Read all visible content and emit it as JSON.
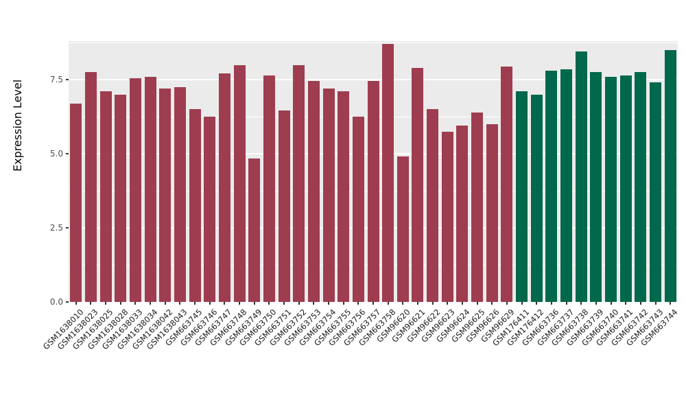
{
  "chart_data": {
    "type": "bar",
    "title": "",
    "xlabel": "",
    "ylabel": "Expression Level",
    "ylim": [
      0,
      8.8
    ],
    "grid": true,
    "legend": "none",
    "panel_bg": "#EBEBEB",
    "ytick_values": [
      0,
      2.5,
      5,
      7.5
    ],
    "ytick_labels": [
      "0.0",
      "2.5",
      "5.0",
      "7.5"
    ],
    "minor_tick_values": [
      1.25,
      3.75,
      6.25,
      8.75
    ],
    "group_colors": {
      "groupA": "#9e3d50",
      "groupB": "#01684b"
    },
    "samples": [
      {
        "label": "GSM1638010",
        "value": 6.7,
        "group": "groupA"
      },
      {
        "label": "GSM1638023",
        "value": 7.75,
        "group": "groupA"
      },
      {
        "label": "GSM1638025",
        "value": 7.1,
        "group": "groupA"
      },
      {
        "label": "GSM1638028",
        "value": 7.0,
        "group": "groupA"
      },
      {
        "label": "GSM1638033",
        "value": 7.55,
        "group": "groupA"
      },
      {
        "label": "GSM1638034",
        "value": 7.6,
        "group": "groupA"
      },
      {
        "label": "GSM1638042",
        "value": 7.2,
        "group": "groupA"
      },
      {
        "label": "GSM1638043",
        "value": 7.25,
        "group": "groupA"
      },
      {
        "label": "GSM663745",
        "value": 6.5,
        "group": "groupA"
      },
      {
        "label": "GSM663746",
        "value": 6.25,
        "group": "groupA"
      },
      {
        "label": "GSM663747",
        "value": 7.7,
        "group": "groupA"
      },
      {
        "label": "GSM663748",
        "value": 8.0,
        "group": "groupA"
      },
      {
        "label": "GSM663749",
        "value": 4.85,
        "group": "groupA"
      },
      {
        "label": "GSM663750",
        "value": 7.65,
        "group": "groupA"
      },
      {
        "label": "GSM663751",
        "value": 6.45,
        "group": "groupA"
      },
      {
        "label": "GSM663752",
        "value": 8.0,
        "group": "groupA"
      },
      {
        "label": "GSM663753",
        "value": 7.45,
        "group": "groupA"
      },
      {
        "label": "GSM663754",
        "value": 7.2,
        "group": "groupA"
      },
      {
        "label": "GSM663755",
        "value": 7.1,
        "group": "groupA"
      },
      {
        "label": "GSM663756",
        "value": 6.25,
        "group": "groupA"
      },
      {
        "label": "GSM663757",
        "value": 7.45,
        "group": "groupA"
      },
      {
        "label": "GSM663758",
        "value": 8.7,
        "group": "groupA"
      },
      {
        "label": "GSM96620",
        "value": 4.9,
        "group": "groupA"
      },
      {
        "label": "GSM96621",
        "value": 7.9,
        "group": "groupA"
      },
      {
        "label": "GSM96622",
        "value": 6.5,
        "group": "groupA"
      },
      {
        "label": "GSM96623",
        "value": 5.75,
        "group": "groupA"
      },
      {
        "label": "GSM96624",
        "value": 5.95,
        "group": "groupA"
      },
      {
        "label": "GSM96625",
        "value": 6.4,
        "group": "groupA"
      },
      {
        "label": "GSM96626",
        "value": 6.0,
        "group": "groupA"
      },
      {
        "label": "GSM96629",
        "value": 7.95,
        "group": "groupA"
      },
      {
        "label": "GSM176411",
        "value": 7.1,
        "group": "groupB"
      },
      {
        "label": "GSM176412",
        "value": 7.0,
        "group": "groupB"
      },
      {
        "label": "GSM663736",
        "value": 7.8,
        "group": "groupB"
      },
      {
        "label": "GSM663737",
        "value": 7.85,
        "group": "groupB"
      },
      {
        "label": "GSM663738",
        "value": 8.45,
        "group": "groupB"
      },
      {
        "label": "GSM663739",
        "value": 7.75,
        "group": "groupB"
      },
      {
        "label": "GSM663740",
        "value": 7.6,
        "group": "groupB"
      },
      {
        "label": "GSM663741",
        "value": 7.65,
        "group": "groupB"
      },
      {
        "label": "GSM663742",
        "value": 7.75,
        "group": "groupB"
      },
      {
        "label": "GSM663743",
        "value": 7.4,
        "group": "groupB"
      },
      {
        "label": "GSM663744",
        "value": 8.5,
        "group": "groupB"
      }
    ]
  }
}
